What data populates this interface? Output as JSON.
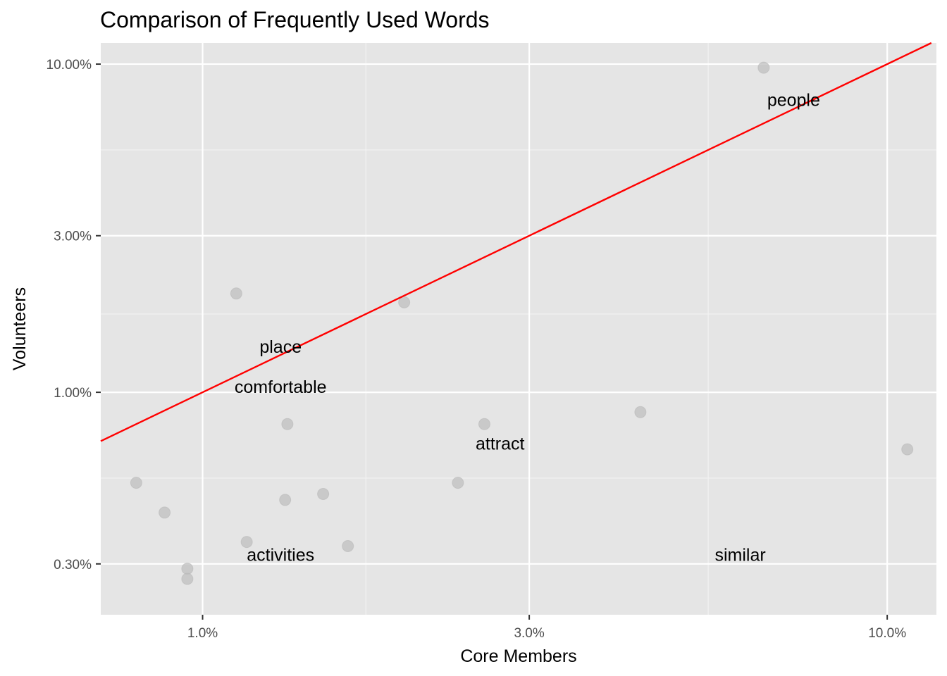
{
  "chart_data": {
    "type": "scatter",
    "title": "Comparison of Frequently Used Words",
    "xlabel": "Core Members",
    "ylabel": "Volunteers",
    "x_scale": "log10",
    "y_scale": "log10",
    "xlim": [
      0.0071,
      0.118
    ],
    "ylim": [
      0.0021,
      0.116
    ],
    "x_ticks": [
      {
        "value": 0.01,
        "label": "1.0%"
      },
      {
        "value": 0.03,
        "label": "3.0%"
      },
      {
        "value": 0.1,
        "label": "10.0%"
      }
    ],
    "y_ticks": [
      {
        "value": 0.003,
        "label": "0.30%"
      },
      {
        "value": 0.01,
        "label": "1.00%"
      },
      {
        "value": 0.03,
        "label": "3.00%"
      },
      {
        "value": 0.1,
        "label": "10.00%"
      }
    ],
    "grid": true,
    "background": "#e5e5e5",
    "point_color": "#bfbfbf",
    "reference_line": {
      "type": "y=x",
      "color": "#ff0000"
    },
    "points": [
      {
        "x": 0.008,
        "y": 0.0053
      },
      {
        "x": 0.0088,
        "y": 0.0043
      },
      {
        "x": 0.0095,
        "y": 0.0029
      },
      {
        "x": 0.0095,
        "y": 0.0027
      },
      {
        "x": 0.0112,
        "y": 0.02
      },
      {
        "x": 0.0116,
        "y": 0.0035
      },
      {
        "x": 0.0132,
        "y": 0.0047
      },
      {
        "x": 0.0133,
        "y": 0.008
      },
      {
        "x": 0.015,
        "y": 0.0049
      },
      {
        "x": 0.0163,
        "y": 0.0034
      },
      {
        "x": 0.0197,
        "y": 0.0188
      },
      {
        "x": 0.0236,
        "y": 0.0053
      },
      {
        "x": 0.0258,
        "y": 0.008
      },
      {
        "x": 0.0436,
        "y": 0.0087
      },
      {
        "x": 0.066,
        "y": 0.0975
      },
      {
        "x": 0.107,
        "y": 0.0067
      }
    ],
    "labels": [
      {
        "text": "people",
        "x": 0.073,
        "y": 0.078
      },
      {
        "text": "place",
        "x": 0.013,
        "y": 0.0138
      },
      {
        "text": "comfortable",
        "x": 0.013,
        "y": 0.0104
      },
      {
        "text": "attract",
        "x": 0.0272,
        "y": 0.007
      },
      {
        "text": "activities",
        "x": 0.013,
        "y": 0.0032
      },
      {
        "text": "similar",
        "x": 0.061,
        "y": 0.0032
      }
    ]
  }
}
